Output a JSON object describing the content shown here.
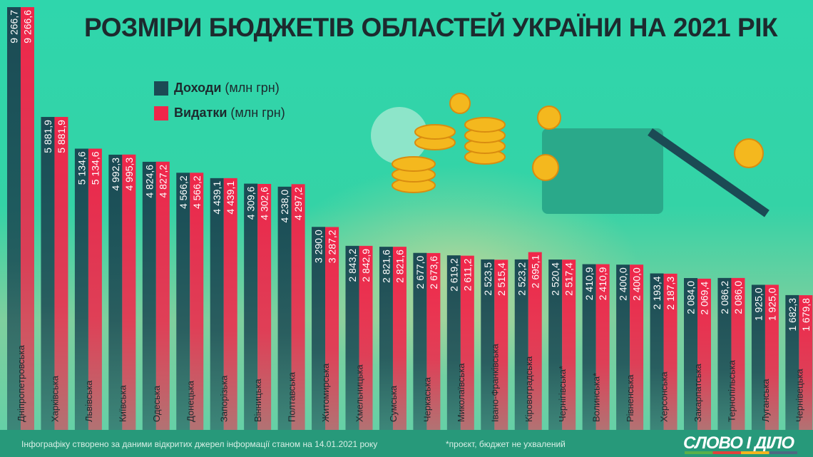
{
  "title": "РОЗМІРИ БЮДЖЕТІВ ОБЛАСТЕЙ УКРАЇНИ НА 2021 РІК",
  "legend": {
    "income": {
      "bold": "Доходи",
      "unit": "(млн грн)"
    },
    "expense": {
      "bold": "Видатки",
      "unit": "(млн грн)"
    }
  },
  "colors": {
    "income": "#1b4a54",
    "expense": "#f0264a",
    "background": "#34d3a6",
    "footer": "#27997a"
  },
  "footer": {
    "source": "Інфографіку створено за даними відкритих джерел інформації станом на 14.01.2021 року",
    "note": "*проєкт, бюджет не ухвалений",
    "logo": "СЛОВО І ДІЛО"
  },
  "chart_data": {
    "type": "bar",
    "title": "РОЗМІРИ БЮДЖЕТІВ ОБЛАСТЕЙ УКРАЇНИ НА 2021 РІК",
    "categories": [
      "Дніпропетровська",
      "Харківська",
      "Львівська",
      "Київська",
      "Одеська",
      "Донецька",
      "Запорізька",
      "Вінницька",
      "Полтавська",
      "Житомирська",
      "Хмельницька",
      "Сумська",
      "Черкаська",
      "Миколаївська",
      "Івано-Франківська",
      "Кіровоградська",
      "Чернігівська*",
      "Волинська*",
      "Рівненська",
      "Херсонська",
      "Закарпатська",
      "Тернопільська",
      "Луганська",
      "Чернівецька"
    ],
    "series": [
      {
        "name": "Доходи (млн грн)",
        "values": [
          9266.7,
          5881.9,
          5134.6,
          4992.3,
          4824.6,
          4566.2,
          4439.1,
          4309.6,
          4238.0,
          3290.0,
          2843.2,
          2821.6,
          2677.0,
          2619.2,
          2523.5,
          2523.2,
          2520.4,
          2410.9,
          2400.0,
          2193.4,
          2084.0,
          2086.2,
          1925.0,
          1682.3
        ]
      },
      {
        "name": "Видатки (млн грн)",
        "values": [
          9266.6,
          5881.9,
          5134.6,
          4995.3,
          4827.2,
          4566.2,
          4439.1,
          4302.6,
          4297.2,
          3287.2,
          2842.9,
          2821.6,
          2673.6,
          2611.2,
          2515.4,
          2695.1,
          2517.4,
          2410.9,
          2400.0,
          2187.3,
          2069.4,
          2086.0,
          1925.0,
          1679.8
        ]
      }
    ],
    "value_labels": {
      "income": [
        "9 266,7",
        "5 881,9",
        "5 134,6",
        "4 992,3",
        "4 824,6",
        "4 566,2",
        "4 439,1",
        "4 309,6",
        "4 238,0",
        "3 290,0",
        "2 843,2",
        "2 821,6",
        "2 677,0",
        "2 619,2",
        "2 523,5",
        "2 523,2",
        "2 520,4",
        "2 410,9",
        "2 400,0",
        "2 193,4",
        "2 084,0",
        "2 086,2",
        "1 925,0",
        "1 682,3"
      ],
      "expense": [
        "9 266,6",
        "5 881,9",
        "5 134,6",
        "4 995,3",
        "4 827,2",
        "4 566,2",
        "4 439,1",
        "4 302,6",
        "4 297,2",
        "3 287,2",
        "2 842,9",
        "2 821,6",
        "2 673,6",
        "2 611,2",
        "2 515,4",
        "2 695,1",
        "2 517,4",
        "2 410,9",
        "2 400,0",
        "2 187,3",
        "2 069,4",
        "2 086,0",
        "1 925,0",
        "1 679,8"
      ]
    },
    "legend_position": "top-left",
    "grid": false
  }
}
